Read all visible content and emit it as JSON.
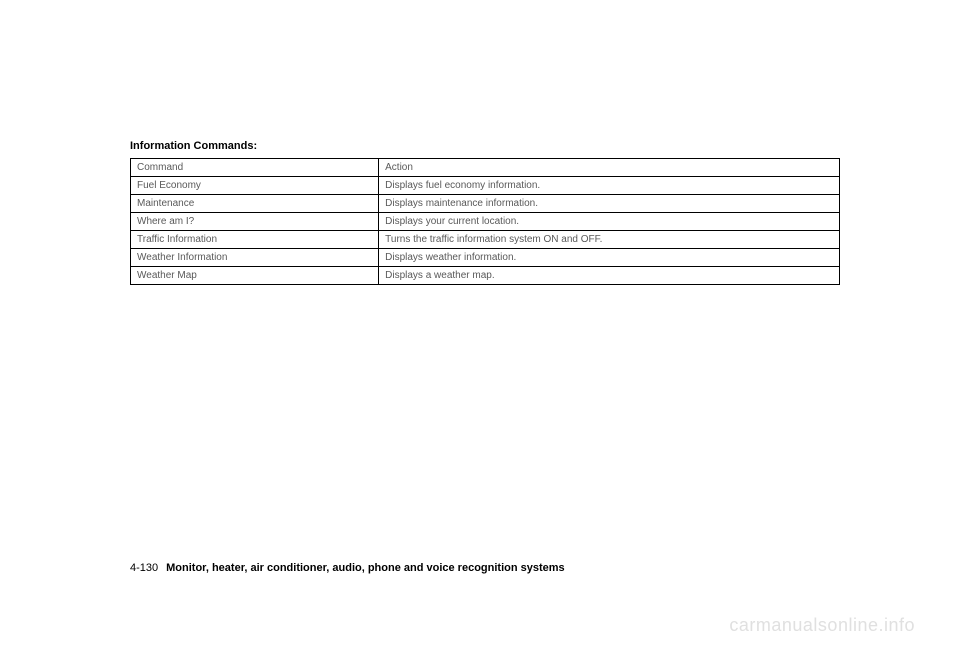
{
  "section_title": "Information Commands:",
  "table": {
    "header": {
      "command": "Command",
      "action": "Action"
    },
    "rows": [
      {
        "command": "Fuel Economy",
        "action": "Displays fuel economy information."
      },
      {
        "command": "Maintenance",
        "action": "Displays maintenance information."
      },
      {
        "command": "Where am I?",
        "action": "Displays your current location."
      },
      {
        "command": "Traffic Information",
        "action": "Turns the traffic information system ON and OFF."
      },
      {
        "command": "Weather Information",
        "action": "Displays weather information."
      },
      {
        "command": "Weather Map",
        "action": "Displays a weather map."
      }
    ]
  },
  "footer": {
    "page_number": "4-130",
    "chapter_title": "Monitor, heater, air conditioner, audio, phone and voice recognition systems"
  },
  "watermark": "carmanualsonline.info"
}
